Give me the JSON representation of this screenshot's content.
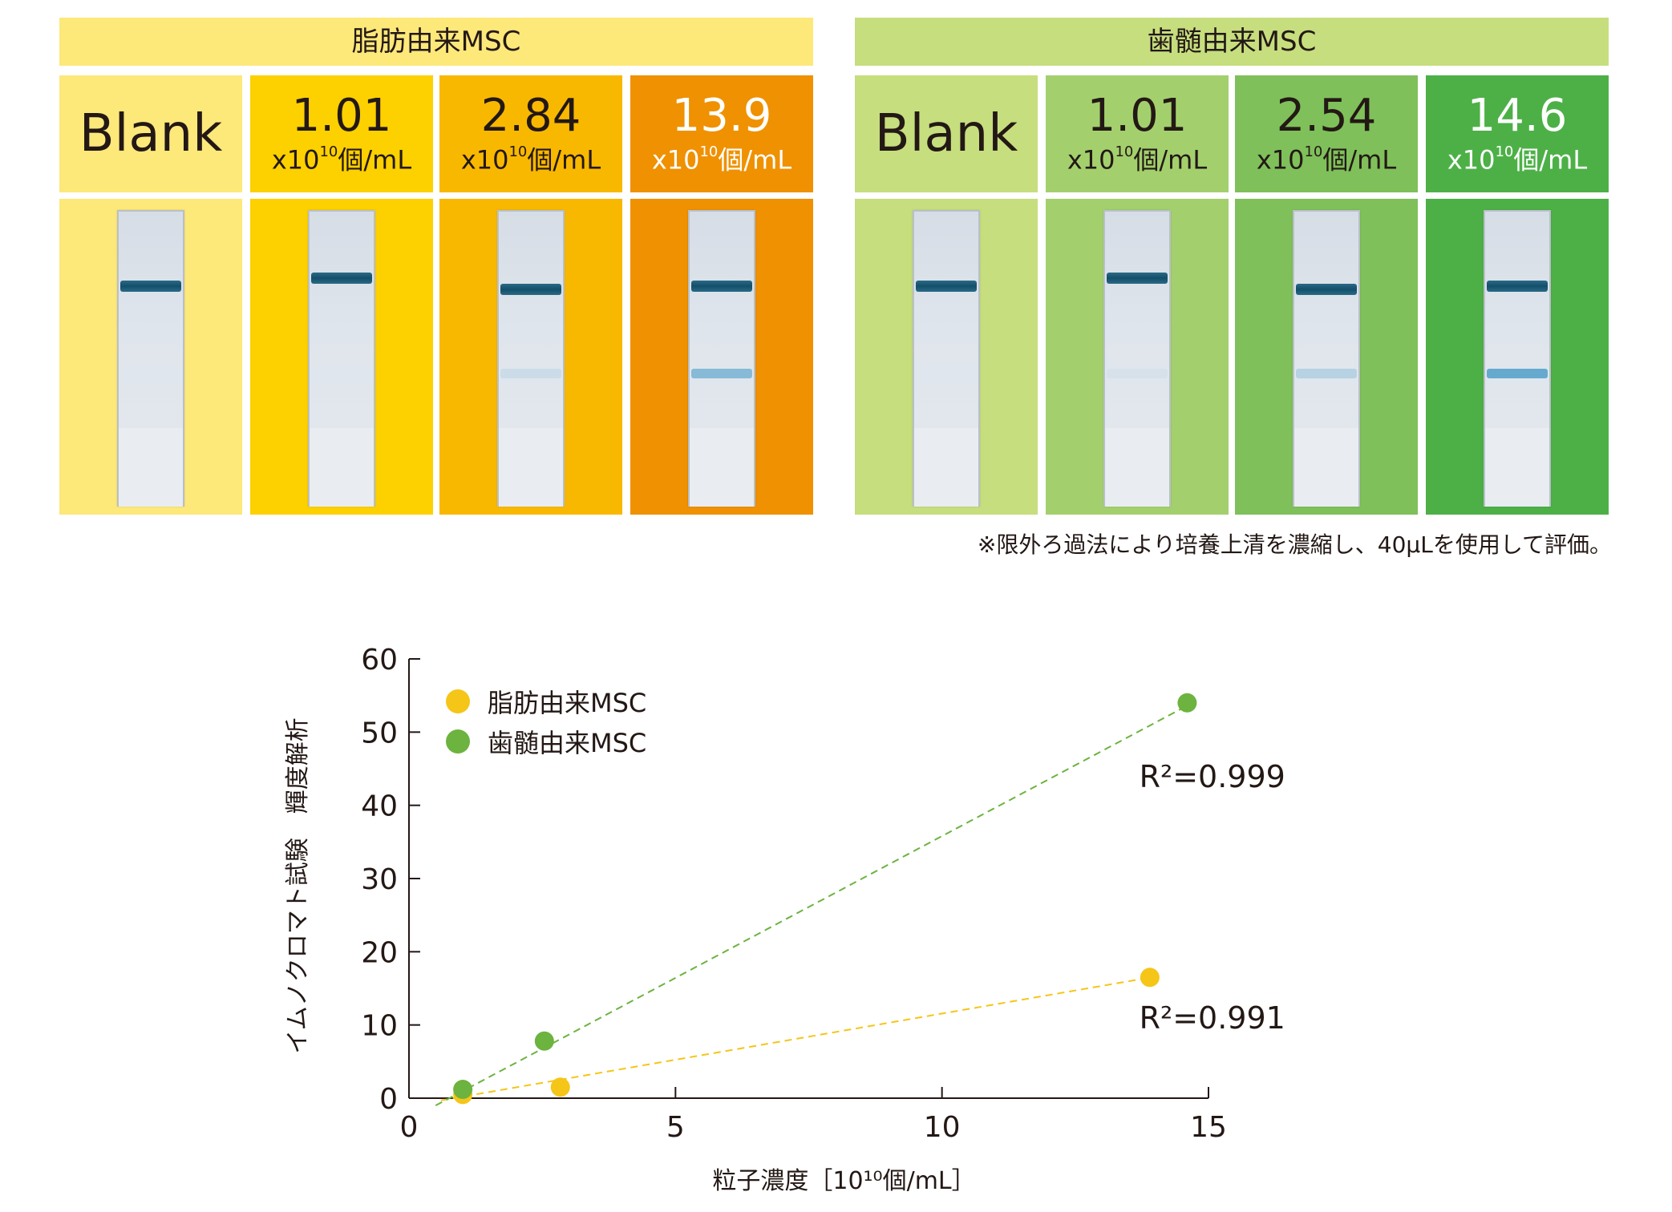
{
  "groups": [
    {
      "title": "脂肪由来MSC",
      "header_color": "#FDE87A",
      "cells": [
        {
          "label": "Blank",
          "value": "",
          "unit_prefix": "",
          "unit_exp": "",
          "unit_suffix": "",
          "color": "#FDE87A",
          "test_intensity": 0
        },
        {
          "label": "",
          "value": "1.01",
          "unit_prefix": "x10",
          "unit_exp": "10",
          "unit_suffix": "個/mL",
          "color": "#FDD000",
          "test_intensity": 0
        },
        {
          "label": "",
          "value": "2.84",
          "unit_prefix": "x10",
          "unit_exp": "10",
          "unit_suffix": "個/mL",
          "color": "#F9B800",
          "test_intensity": 0.12
        },
        {
          "label": "",
          "value": "13.9",
          "unit_prefix": "x10",
          "unit_exp": "10",
          "unit_suffix": "個/mL",
          "color": "#EF9100",
          "test_intensity": 0.55
        }
      ]
    },
    {
      "title": "歯髄由来MSC",
      "header_color": "#C6DE7E",
      "cells": [
        {
          "label": "Blank",
          "value": "",
          "unit_prefix": "",
          "unit_exp": "",
          "unit_suffix": "",
          "color": "#C6DE7E",
          "test_intensity": 0
        },
        {
          "label": "",
          "value": "1.01",
          "unit_prefix": "x10",
          "unit_exp": "10",
          "unit_suffix": "個/mL",
          "color": "#A3D06D",
          "test_intensity": 0.06
        },
        {
          "label": "",
          "value": "2.54",
          "unit_prefix": "x10",
          "unit_exp": "10",
          "unit_suffix": "個/mL",
          "color": "#7FC05A",
          "test_intensity": 0.25
        },
        {
          "label": "",
          "value": "14.6",
          "unit_prefix": "x10",
          "unit_exp": "10",
          "unit_suffix": "個/mL",
          "color": "#4DB047",
          "test_intensity": 0.75
        }
      ]
    }
  ],
  "note": "※限外ろ過法により培養上清を濃縮し、40μLを使用して評価。",
  "chart_data": {
    "type": "scatter",
    "xlabel": "粒子濃度［10¹⁰個/mL］",
    "ylabel": "イムノクロマト試験　輝度解析",
    "xlim": [
      0,
      15
    ],
    "ylim": [
      0,
      60
    ],
    "xticks": [
      0,
      5,
      10,
      15
    ],
    "yticks": [
      0,
      10,
      20,
      30,
      40,
      50,
      60
    ],
    "legend_position": "top-left",
    "series": [
      {
        "name": "脂肪由来MSC",
        "color": "#F5C518",
        "x": [
          1.01,
          2.84,
          13.9
        ],
        "y": [
          0.5,
          1.5,
          16.5
        ],
        "trendline": {
          "x": [
            0.6,
            14.0
          ],
          "y": [
            -0.3,
            16.6
          ]
        },
        "r2_label": "R²=0.991"
      },
      {
        "name": "歯髄由来MSC",
        "color": "#6DB33F",
        "x": [
          1.01,
          2.54,
          14.6
        ],
        "y": [
          1.2,
          7.8,
          54.0
        ],
        "trendline": {
          "x": [
            0.5,
            14.7
          ],
          "y": [
            -1.0,
            54.0
          ]
        },
        "r2_label": "R²=0.999"
      }
    ]
  }
}
